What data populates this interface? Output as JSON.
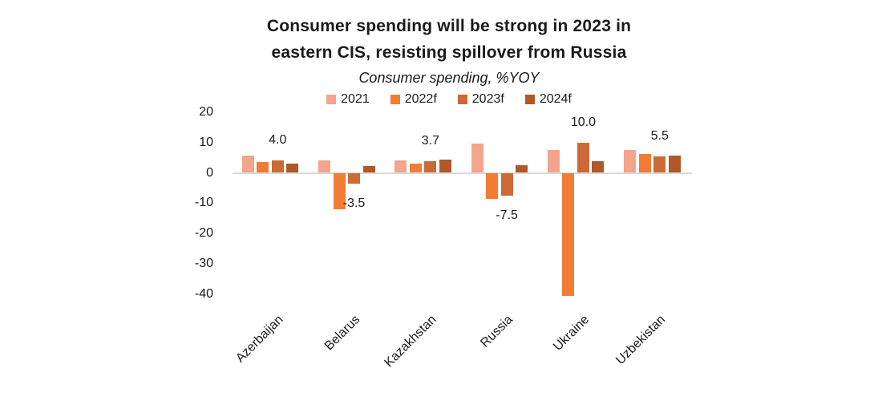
{
  "chart_data": {
    "type": "bar",
    "title_line1": "Consumer spending will be strong in 2023 in",
    "title_line2": "eastern CIS, resisting spillover from Russia",
    "subtitle": "Consumer spending, %YOY",
    "categories": [
      "Azerbaijan",
      "Belarus",
      "Kazakhstan",
      "Russia",
      "Ukraine",
      "Uzbekistan"
    ],
    "series": [
      {
        "name": "2021",
        "color": "#F2A58C",
        "values": [
          5.8,
          4.2,
          4.2,
          9.5,
          7.6,
          7.6
        ]
      },
      {
        "name": "2022f",
        "color": "#F07D33",
        "values": [
          3.6,
          -12.0,
          3.1,
          -8.5,
          -40.5,
          6.2
        ]
      },
      {
        "name": "2023f",
        "color": "#CC6A35",
        "values": [
          4.0,
          -3.5,
          3.7,
          -7.5,
          10.0,
          5.5
        ]
      },
      {
        "name": "2024f",
        "color": "#B05827",
        "values": [
          3.1,
          2.3,
          4.4,
          2.5,
          3.8,
          5.6
        ]
      }
    ],
    "data_labels": {
      "series": "2023f",
      "values": [
        "4.0",
        "-3.5",
        "3.7",
        "-7.5",
        "10.0",
        "5.5"
      ]
    },
    "y_ticks": [
      20,
      10,
      0,
      -10,
      -20,
      -30,
      -40
    ],
    "ylim": [
      -41,
      20
    ],
    "grid": false,
    "legend_position": "top",
    "axis_line_color": "#D9D9D9",
    "text_color": "#1A1A1A",
    "background_color": "#FFFFFF"
  }
}
